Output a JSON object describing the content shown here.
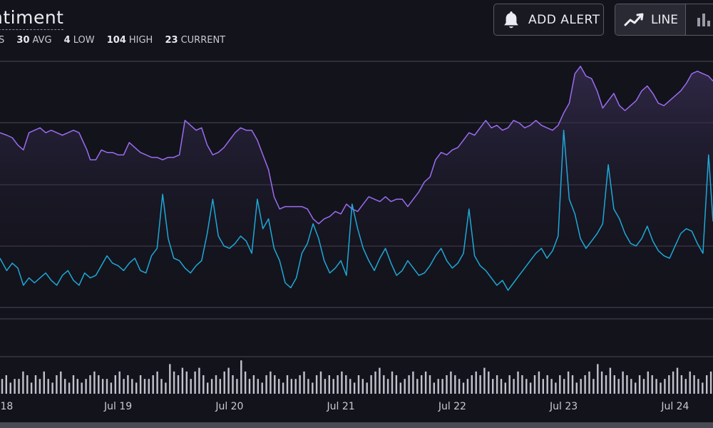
{
  "header": {
    "title": "ntiment",
    "stats": [
      {
        "value": "",
        "label": "S"
      },
      {
        "value": "30",
        "label": "AVG"
      },
      {
        "value": "4",
        "label": "LOW"
      },
      {
        "value": "104",
        "label": "HIGH"
      },
      {
        "value": "23",
        "label": "CURRENT"
      }
    ]
  },
  "toolbar": {
    "alert_label": "ADD ALERT",
    "alert_icon": "bell-icon",
    "line_label": "LINE",
    "line_icon": "line-chart-icon",
    "bar_icon": "bar-chart-icon"
  },
  "colors": {
    "background": "#13131c",
    "upper_series": "#9b6cf0",
    "lower_series": "#1fa8d6",
    "volume_bars": "#c2c2cc",
    "gridline": "#4a4a56"
  },
  "chart_data": {
    "type": "line",
    "x_tick_labels": [
      "18",
      "Jul 19",
      "Jul 20",
      "Jul 21",
      "Jul 22",
      "Jul 23",
      "Jul 24"
    ],
    "x_tick_days": [
      18,
      19,
      20,
      21,
      22,
      23,
      24
    ],
    "x_range_days": [
      17.94,
      24.34
    ],
    "grid": true,
    "series": [
      {
        "color": "#9b6cf0",
        "fill": true,
        "points": [
          [
            17.94,
            71
          ],
          [
            18.0,
            70
          ],
          [
            18.05,
            69
          ],
          [
            18.1,
            66
          ],
          [
            18.15,
            64
          ],
          [
            18.2,
            71
          ],
          [
            18.25,
            72
          ],
          [
            18.3,
            73
          ],
          [
            18.35,
            71
          ],
          [
            18.4,
            72
          ],
          [
            18.45,
            71
          ],
          [
            18.5,
            70
          ],
          [
            18.55,
            71
          ],
          [
            18.6,
            72
          ],
          [
            18.65,
            71
          ],
          [
            18.7,
            66
          ],
          [
            18.72,
            64
          ],
          [
            18.75,
            60
          ],
          [
            18.8,
            60
          ],
          [
            18.85,
            64
          ],
          [
            18.9,
            63
          ],
          [
            18.95,
            63
          ],
          [
            19.0,
            62
          ],
          [
            19.05,
            62
          ],
          [
            19.1,
            67
          ],
          [
            19.15,
            65
          ],
          [
            19.2,
            63
          ],
          [
            19.25,
            62
          ],
          [
            19.3,
            61
          ],
          [
            19.35,
            61
          ],
          [
            19.4,
            60
          ],
          [
            19.45,
            61
          ],
          [
            19.5,
            61
          ],
          [
            19.55,
            62
          ],
          [
            19.6,
            76
          ],
          [
            19.65,
            74
          ],
          [
            19.7,
            72
          ],
          [
            19.75,
            73
          ],
          [
            19.8,
            66
          ],
          [
            19.85,
            62
          ],
          [
            19.9,
            63
          ],
          [
            19.95,
            65
          ],
          [
            20.0,
            68
          ],
          [
            20.05,
            71
          ],
          [
            20.1,
            73
          ],
          [
            20.15,
            72
          ],
          [
            20.2,
            72
          ],
          [
            20.25,
            68
          ],
          [
            20.3,
            62
          ],
          [
            20.35,
            56
          ],
          [
            20.4,
            45
          ],
          [
            20.45,
            40
          ],
          [
            20.5,
            41
          ],
          [
            20.55,
            41
          ],
          [
            20.6,
            41
          ],
          [
            20.65,
            41
          ],
          [
            20.7,
            40
          ],
          [
            20.75,
            36
          ],
          [
            20.8,
            34
          ],
          [
            20.85,
            36
          ],
          [
            20.9,
            37
          ],
          [
            20.95,
            39
          ],
          [
            21.0,
            38
          ],
          [
            21.05,
            42
          ],
          [
            21.1,
            40
          ],
          [
            21.15,
            39
          ],
          [
            21.2,
            42
          ],
          [
            21.25,
            45
          ],
          [
            21.3,
            44
          ],
          [
            21.35,
            43
          ],
          [
            21.4,
            45
          ],
          [
            21.45,
            43
          ],
          [
            21.5,
            44
          ],
          [
            21.55,
            44
          ],
          [
            21.6,
            41
          ],
          [
            21.65,
            44
          ],
          [
            21.7,
            47
          ],
          [
            21.75,
            51
          ],
          [
            21.8,
            53
          ],
          [
            21.85,
            60
          ],
          [
            21.9,
            63
          ],
          [
            21.95,
            62
          ],
          [
            22.0,
            64
          ],
          [
            22.05,
            65
          ],
          [
            22.1,
            68
          ],
          [
            22.15,
            71
          ],
          [
            22.2,
            70
          ],
          [
            22.25,
            73
          ],
          [
            22.3,
            76
          ],
          [
            22.35,
            73
          ],
          [
            22.4,
            74
          ],
          [
            22.45,
            72
          ],
          [
            22.5,
            73
          ],
          [
            22.55,
            76
          ],
          [
            22.6,
            75
          ],
          [
            22.65,
            73
          ],
          [
            22.7,
            74
          ],
          [
            22.75,
            76
          ],
          [
            22.8,
            74
          ],
          [
            22.85,
            73
          ],
          [
            22.9,
            72
          ],
          [
            22.95,
            74
          ],
          [
            23.0,
            79
          ],
          [
            23.05,
            83
          ],
          [
            23.1,
            95
          ],
          [
            23.15,
            98
          ],
          [
            23.2,
            94
          ],
          [
            23.25,
            93
          ],
          [
            23.3,
            88
          ],
          [
            23.35,
            81
          ],
          [
            23.4,
            84
          ],
          [
            23.45,
            87
          ],
          [
            23.5,
            82
          ],
          [
            23.55,
            80
          ],
          [
            23.6,
            82
          ],
          [
            23.65,
            84
          ],
          [
            23.7,
            88
          ],
          [
            23.75,
            90
          ],
          [
            23.8,
            87
          ],
          [
            23.85,
            83
          ],
          [
            23.9,
            82
          ],
          [
            23.95,
            84
          ],
          [
            24.0,
            86
          ],
          [
            24.05,
            88
          ],
          [
            24.1,
            91
          ],
          [
            24.15,
            95
          ],
          [
            24.2,
            96
          ],
          [
            24.25,
            95
          ],
          [
            24.3,
            94
          ],
          [
            24.34,
            92
          ]
        ]
      },
      {
        "color": "#1fa8d6",
        "fill": false,
        "points": [
          [
            17.94,
            20
          ],
          [
            18.0,
            15
          ],
          [
            18.05,
            18
          ],
          [
            18.1,
            16
          ],
          [
            18.15,
            9
          ],
          [
            18.2,
            12
          ],
          [
            18.25,
            10
          ],
          [
            18.3,
            12
          ],
          [
            18.35,
            14
          ],
          [
            18.4,
            11
          ],
          [
            18.45,
            9
          ],
          [
            18.5,
            13
          ],
          [
            18.55,
            15
          ],
          [
            18.6,
            11
          ],
          [
            18.65,
            9
          ],
          [
            18.7,
            14
          ],
          [
            18.75,
            12
          ],
          [
            18.8,
            13
          ],
          [
            18.85,
            17
          ],
          [
            18.9,
            21
          ],
          [
            18.95,
            18
          ],
          [
            19.0,
            17
          ],
          [
            19.05,
            15
          ],
          [
            19.1,
            18
          ],
          [
            19.15,
            20
          ],
          [
            19.2,
            15
          ],
          [
            19.25,
            14
          ],
          [
            19.3,
            21
          ],
          [
            19.35,
            24
          ],
          [
            19.4,
            46
          ],
          [
            19.45,
            28
          ],
          [
            19.5,
            20
          ],
          [
            19.55,
            19
          ],
          [
            19.6,
            16
          ],
          [
            19.65,
            14
          ],
          [
            19.7,
            17
          ],
          [
            19.75,
            19
          ],
          [
            19.8,
            30
          ],
          [
            19.85,
            44
          ],
          [
            19.9,
            29
          ],
          [
            19.95,
            25
          ],
          [
            20.0,
            24
          ],
          [
            20.05,
            26
          ],
          [
            20.1,
            29
          ],
          [
            20.15,
            27
          ],
          [
            20.2,
            22
          ],
          [
            20.25,
            44
          ],
          [
            20.3,
            32
          ],
          [
            20.35,
            36
          ],
          [
            20.4,
            24
          ],
          [
            20.45,
            19
          ],
          [
            20.5,
            10
          ],
          [
            20.55,
            8
          ],
          [
            20.6,
            12
          ],
          [
            20.65,
            22
          ],
          [
            20.7,
            26
          ],
          [
            20.75,
            34
          ],
          [
            20.8,
            28
          ],
          [
            20.85,
            19
          ],
          [
            20.9,
            14
          ],
          [
            20.95,
            16
          ],
          [
            21.0,
            19
          ],
          [
            21.05,
            13
          ],
          [
            21.1,
            42
          ],
          [
            21.15,
            32
          ],
          [
            21.2,
            24
          ],
          [
            21.25,
            19
          ],
          [
            21.3,
            15
          ],
          [
            21.35,
            20
          ],
          [
            21.4,
            24
          ],
          [
            21.45,
            18
          ],
          [
            21.5,
            13
          ],
          [
            21.55,
            15
          ],
          [
            21.6,
            19
          ],
          [
            21.65,
            16
          ],
          [
            21.7,
            13
          ],
          [
            21.75,
            14
          ],
          [
            21.8,
            17
          ],
          [
            21.85,
            21
          ],
          [
            21.9,
            24
          ],
          [
            21.95,
            19
          ],
          [
            22.0,
            16
          ],
          [
            22.05,
            18
          ],
          [
            22.1,
            22
          ],
          [
            22.15,
            40
          ],
          [
            22.2,
            21
          ],
          [
            22.25,
            17
          ],
          [
            22.3,
            15
          ],
          [
            22.35,
            12
          ],
          [
            22.4,
            9
          ],
          [
            22.45,
            11
          ],
          [
            22.5,
            7
          ],
          [
            22.55,
            10
          ],
          [
            22.6,
            13
          ],
          [
            22.65,
            16
          ],
          [
            22.7,
            19
          ],
          [
            22.75,
            22
          ],
          [
            22.8,
            24
          ],
          [
            22.85,
            20
          ],
          [
            22.9,
            23
          ],
          [
            22.95,
            29
          ],
          [
            23.0,
            72
          ],
          [
            23.05,
            44
          ],
          [
            23.1,
            38
          ],
          [
            23.15,
            28
          ],
          [
            23.2,
            24
          ],
          [
            23.25,
            27
          ],
          [
            23.3,
            30
          ],
          [
            23.35,
            34
          ],
          [
            23.4,
            58
          ],
          [
            23.45,
            40
          ],
          [
            23.5,
            36
          ],
          [
            23.55,
            30
          ],
          [
            23.6,
            26
          ],
          [
            23.65,
            25
          ],
          [
            23.7,
            28
          ],
          [
            23.75,
            33
          ],
          [
            23.8,
            27
          ],
          [
            23.85,
            23
          ],
          [
            23.9,
            21
          ],
          [
            23.95,
            20
          ],
          [
            24.0,
            25
          ],
          [
            24.05,
            30
          ],
          [
            24.1,
            32
          ],
          [
            24.15,
            31
          ],
          [
            24.2,
            26
          ],
          [
            24.25,
            22
          ],
          [
            24.3,
            62
          ],
          [
            24.34,
            35
          ]
        ]
      }
    ],
    "volume": [
      4,
      5,
      3,
      4,
      4,
      6,
      5,
      3,
      5,
      4,
      6,
      4,
      3,
      5,
      6,
      4,
      3,
      5,
      4,
      3,
      4,
      5,
      6,
      5,
      4,
      4,
      3,
      5,
      6,
      4,
      5,
      4,
      3,
      5,
      4,
      4,
      5,
      6,
      4,
      3,
      8,
      6,
      5,
      7,
      6,
      4,
      6,
      7,
      5,
      3,
      4,
      5,
      4,
      6,
      7,
      5,
      4,
      9,
      6,
      4,
      5,
      4,
      3,
      5,
      6,
      5,
      4,
      3,
      5,
      4,
      4,
      5,
      6,
      4,
      3,
      5,
      6,
      4,
      5,
      4,
      5,
      6,
      5,
      4,
      3,
      5,
      4,
      3,
      5,
      6,
      7,
      5,
      4,
      6,
      5,
      3,
      4,
      5,
      6,
      4,
      5,
      6,
      5,
      3,
      4,
      4,
      5,
      6,
      5,
      4,
      3,
      4,
      5,
      6,
      5,
      7,
      6,
      4,
      5,
      4,
      3,
      5,
      4,
      6,
      5,
      4,
      3,
      5,
      6,
      4,
      5,
      4,
      3,
      5,
      4,
      6,
      5,
      3,
      4,
      5,
      6,
      4,
      8,
      6,
      5,
      7,
      5,
      4,
      6,
      5,
      4,
      3,
      5,
      4,
      6,
      5,
      4,
      3,
      4,
      5,
      6,
      7,
      5,
      4,
      6,
      5,
      4,
      3,
      5,
      6
    ]
  }
}
